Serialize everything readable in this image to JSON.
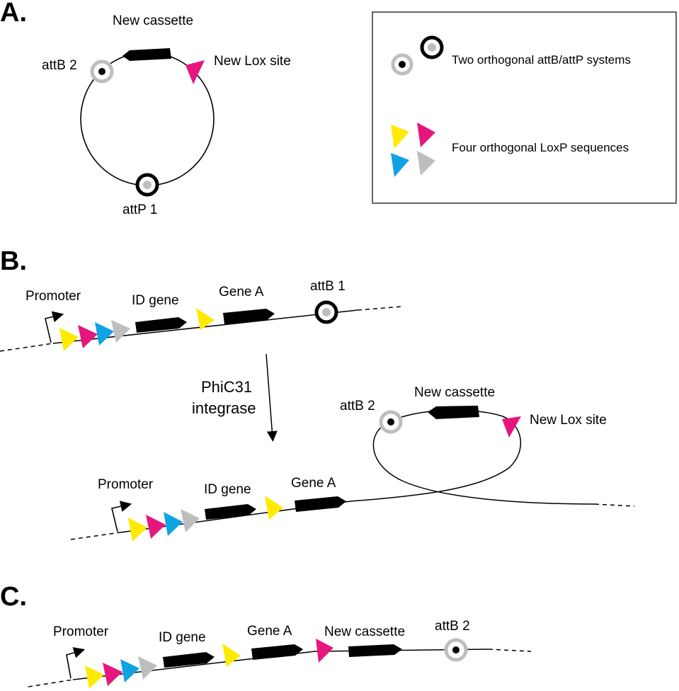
{
  "colors": {
    "yellow": "#FFEA00",
    "magenta": "#E5177E",
    "cyan": "#0FA3E4",
    "gray": "#BEBEBE",
    "black": "#000000"
  },
  "panel_a": {
    "letter": "A.",
    "new_cassette": "New cassette",
    "attb2": "attB 2",
    "new_lox_site": "New Lox site",
    "attp1": "attP 1"
  },
  "legend": {
    "attb_attp": "Two orthogonal attB/attP systems",
    "loxp": "Four orthogonal LoxP sequences"
  },
  "panel_b": {
    "letter": "B.",
    "promoter": "Promoter",
    "id_gene": "ID gene",
    "gene_a": "Gene A",
    "attb1": "attB 1",
    "enzyme_line1": "PhiC31",
    "enzyme_line2": "integrase",
    "attb2": "attB 2",
    "new_cassette": "New cassette",
    "new_lox_site": "New Lox site",
    "promoter_2": "Promoter",
    "id_gene_2": "ID gene",
    "gene_a_2": "Gene A"
  },
  "panel_c": {
    "letter": "C.",
    "promoter": "Promoter",
    "id_gene": "ID gene",
    "gene_a": "Gene A",
    "new_cassette": "New cassette",
    "attb2": "attB 2"
  }
}
